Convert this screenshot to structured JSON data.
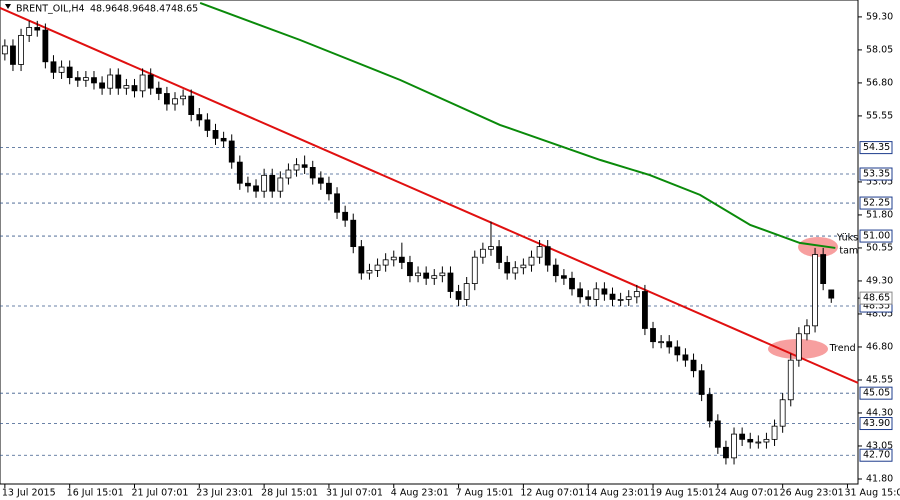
{
  "chart_data": {
    "type": "candlestick",
    "header": {
      "symbol": "BRENT_OIL,H4",
      "open": 48.96,
      "high": 48.96,
      "low": 48.47,
      "close": 48.65
    },
    "xlim": [
      -0.6,
      105.3
    ],
    "ylim": [
      41.61,
      59.94
    ],
    "yticks": [
      {
        "value": 59.3,
        "label": "59.30"
      },
      {
        "value": 58.05,
        "label": "58.05"
      },
      {
        "value": 56.8,
        "label": "56.80"
      },
      {
        "value": 55.55,
        "label": "55.55"
      },
      {
        "value": 53.05,
        "label": "53.05"
      },
      {
        "value": 51.8,
        "label": "51.80"
      },
      {
        "value": 50.55,
        "label": "50.55"
      },
      {
        "value": 49.3,
        "label": "49.30"
      },
      {
        "value": 48.05,
        "label": "48.05"
      },
      {
        "value": 46.8,
        "label": "46.80"
      },
      {
        "value": 45.55,
        "label": "45.55"
      },
      {
        "value": 44.3,
        "label": "44.30"
      },
      {
        "value": 43.05,
        "label": "43.05"
      },
      {
        "value": 41.8,
        "label": "41.80"
      }
    ],
    "xticks": [
      {
        "value": 0,
        "label": "13 Jul 2015"
      },
      {
        "value": 8,
        "label": "16 Jul 15:01"
      },
      {
        "value": 16,
        "label": "21 Jul 07:01"
      },
      {
        "value": 24,
        "label": "23 Jul 23:01"
      },
      {
        "value": 32,
        "label": "28 Jul 15:01"
      },
      {
        "value": 40,
        "label": "31 Jul 07:01"
      },
      {
        "value": 48,
        "label": "4 Aug 23:01"
      },
      {
        "value": 56,
        "label": "7 Aug 15:01"
      },
      {
        "value": 64,
        "label": "12 Aug 07:01"
      },
      {
        "value": 72,
        "label": "14 Aug 23:01"
      },
      {
        "value": 80,
        "label": "19 Aug 15:01"
      },
      {
        "value": 88,
        "label": "24 Aug 07:01"
      },
      {
        "value": 96,
        "label": "26 Aug 23:01"
      },
      {
        "value": 104,
        "label": "31 Aug 15:01"
      }
    ],
    "levels": [
      {
        "value": 54.35,
        "label": "54.35"
      },
      {
        "value": 53.35,
        "label": "53.35"
      },
      {
        "value": 52.25,
        "label": "52.25"
      },
      {
        "value": 51.0,
        "label": "51.00"
      },
      {
        "value": 48.35,
        "label": "48.35"
      },
      {
        "value": 45.05,
        "label": "45.05"
      },
      {
        "value": 43.9,
        "label": "43.90"
      },
      {
        "value": 42.7,
        "label": "42.70"
      }
    ],
    "last_price": {
      "value": 48.65,
      "label": "48.65"
    },
    "candles": {
      "open": [
        57.9,
        58.2,
        57.5,
        58.6,
        58.9,
        58.8,
        57.6,
        57.2,
        57.4,
        57.0,
        56.9,
        57.0,
        56.8,
        56.6,
        57.1,
        56.6,
        56.7,
        56.5,
        57.1,
        56.6,
        56.4,
        56.0,
        56.2,
        56.3,
        55.6,
        55.4,
        55.0,
        54.7,
        54.6,
        53.8,
        53.0,
        52.9,
        52.7,
        53.3,
        52.7,
        53.2,
        53.5,
        53.7,
        53.6,
        53.2,
        53.0,
        52.6,
        51.9,
        51.6,
        50.6,
        49.6,
        49.7,
        49.9,
        50.1,
        50.2,
        50.0,
        49.5,
        49.6,
        49.4,
        49.5,
        49.6,
        48.9,
        48.6,
        49.2,
        50.2,
        50.5,
        50.6,
        50.0,
        49.6,
        49.8,
        49.9,
        50.2,
        50.6,
        49.9,
        49.5,
        49.4,
        49.0,
        48.7,
        48.6,
        49.0,
        48.8,
        48.6,
        48.6,
        48.7,
        48.9,
        47.5,
        47.0,
        47.0,
        46.8,
        46.5,
        46.3,
        45.9,
        45.0,
        44.0,
        43.0,
        42.6,
        43.5,
        43.3,
        43.2,
        43.2,
        43.3,
        43.8,
        44.8,
        46.3,
        47.3,
        47.6,
        50.3,
        48.96
      ],
      "high": [
        58.45,
        58.45,
        58.85,
        59.15,
        59.15,
        59.05,
        57.85,
        57.65,
        57.65,
        57.25,
        57.25,
        57.25,
        57.05,
        57.35,
        57.35,
        56.95,
        56.95,
        57.35,
        57.35,
        56.85,
        56.65,
        56.45,
        56.55,
        56.55,
        55.85,
        55.65,
        55.25,
        54.95,
        54.85,
        54.05,
        53.25,
        53.15,
        53.55,
        53.55,
        53.45,
        53.75,
        53.95,
        54.05,
        53.85,
        53.45,
        53.25,
        52.85,
        52.15,
        51.85,
        50.85,
        49.95,
        50.15,
        50.35,
        50.45,
        50.75,
        50.25,
        49.85,
        49.85,
        49.75,
        49.85,
        49.85,
        49.15,
        49.45,
        50.45,
        50.75,
        51.55,
        50.85,
        50.25,
        50.05,
        50.15,
        50.45,
        50.85,
        50.85,
        50.15,
        49.75,
        49.65,
        49.25,
        48.95,
        49.25,
        49.25,
        49.05,
        48.85,
        48.95,
        49.15,
        49.15,
        47.75,
        47.25,
        47.25,
        47.05,
        46.75,
        46.55,
        46.15,
        45.25,
        44.25,
        43.25,
        43.75,
        43.75,
        43.55,
        43.45,
        43.55,
        44.05,
        45.05,
        46.55,
        47.55,
        47.85,
        50.55,
        50.55,
        48.96
      ],
      "low": [
        57.65,
        57.25,
        57.25,
        58.35,
        58.55,
        57.35,
        56.95,
        56.95,
        56.75,
        56.65,
        56.65,
        56.55,
        56.35,
        56.35,
        56.35,
        56.35,
        56.25,
        56.25,
        56.35,
        56.15,
        55.75,
        55.75,
        55.95,
        55.35,
        55.15,
        54.75,
        54.45,
        54.35,
        53.55,
        52.75,
        52.65,
        52.45,
        52.45,
        52.45,
        52.45,
        52.95,
        53.25,
        53.35,
        52.95,
        52.75,
        52.35,
        51.65,
        51.35,
        50.35,
        49.35,
        49.35,
        49.45,
        49.65,
        49.85,
        49.75,
        49.25,
        49.25,
        49.15,
        49.15,
        49.25,
        48.65,
        48.35,
        48.35,
        48.95,
        49.95,
        50.25,
        49.75,
        49.35,
        49.35,
        49.55,
        49.65,
        49.95,
        49.65,
        49.25,
        49.15,
        48.75,
        48.45,
        48.35,
        48.35,
        48.55,
        48.35,
        48.35,
        48.35,
        48.45,
        47.25,
        46.75,
        46.75,
        46.55,
        46.25,
        46.05,
        45.65,
        44.75,
        43.75,
        42.75,
        42.35,
        42.35,
        43.05,
        42.95,
        42.95,
        42.95,
        43.05,
        43.55,
        44.55,
        46.05,
        47.05,
        47.35,
        48.95,
        48.47
      ],
      "close": [
        58.2,
        57.5,
        58.6,
        58.9,
        58.8,
        57.6,
        57.2,
        57.4,
        57.0,
        56.9,
        57.0,
        56.8,
        56.6,
        57.1,
        56.6,
        56.7,
        56.5,
        57.1,
        56.6,
        56.4,
        56.0,
        56.2,
        56.3,
        55.6,
        55.4,
        55.0,
        54.7,
        54.6,
        53.8,
        53.0,
        52.9,
        52.7,
        53.3,
        52.7,
        53.2,
        53.5,
        53.7,
        53.6,
        53.2,
        53.0,
        52.6,
        51.9,
        51.6,
        50.6,
        49.6,
        49.7,
        49.9,
        50.1,
        50.2,
        50.0,
        49.5,
        49.6,
        49.4,
        49.5,
        49.6,
        48.9,
        48.6,
        49.2,
        50.2,
        50.5,
        50.6,
        50.0,
        49.6,
        49.8,
        49.9,
        50.2,
        50.6,
        49.9,
        49.5,
        49.4,
        49.0,
        48.7,
        48.6,
        49.0,
        48.8,
        48.6,
        48.6,
        48.7,
        48.9,
        47.5,
        47.0,
        47.0,
        46.8,
        46.5,
        46.3,
        45.9,
        45.0,
        44.0,
        43.0,
        42.6,
        43.5,
        43.3,
        43.2,
        43.2,
        43.3,
        43.8,
        44.8,
        46.3,
        47.3,
        47.6,
        50.3,
        49.2,
        48.65
      ]
    },
    "trendline": {
      "color": "#e01010",
      "x": [
        -0.6,
        105.3
      ],
      "values": [
        59.64,
        45.44
      ]
    },
    "moving_average": {
      "color": "#0a8a0a",
      "x": [
        24.1,
        36.4,
        48.8,
        61.1,
        73.5,
        79.6,
        85.8,
        92.0,
        98.1,
        102.5
      ],
      "values": [
        59.83,
        58.43,
        56.91,
        55.21,
        53.88,
        53.31,
        52.56,
        51.42,
        50.74,
        50.55
      ]
    },
    "annotations": [
      {
        "text": "Yüks",
        "x": 102.7,
        "y": 50.92
      },
      {
        "text": "tam",
        "x": 103.0,
        "y": 50.43
      },
      {
        "text": "Trend",
        "x": 101.8,
        "y": 46.75
      }
    ]
  }
}
